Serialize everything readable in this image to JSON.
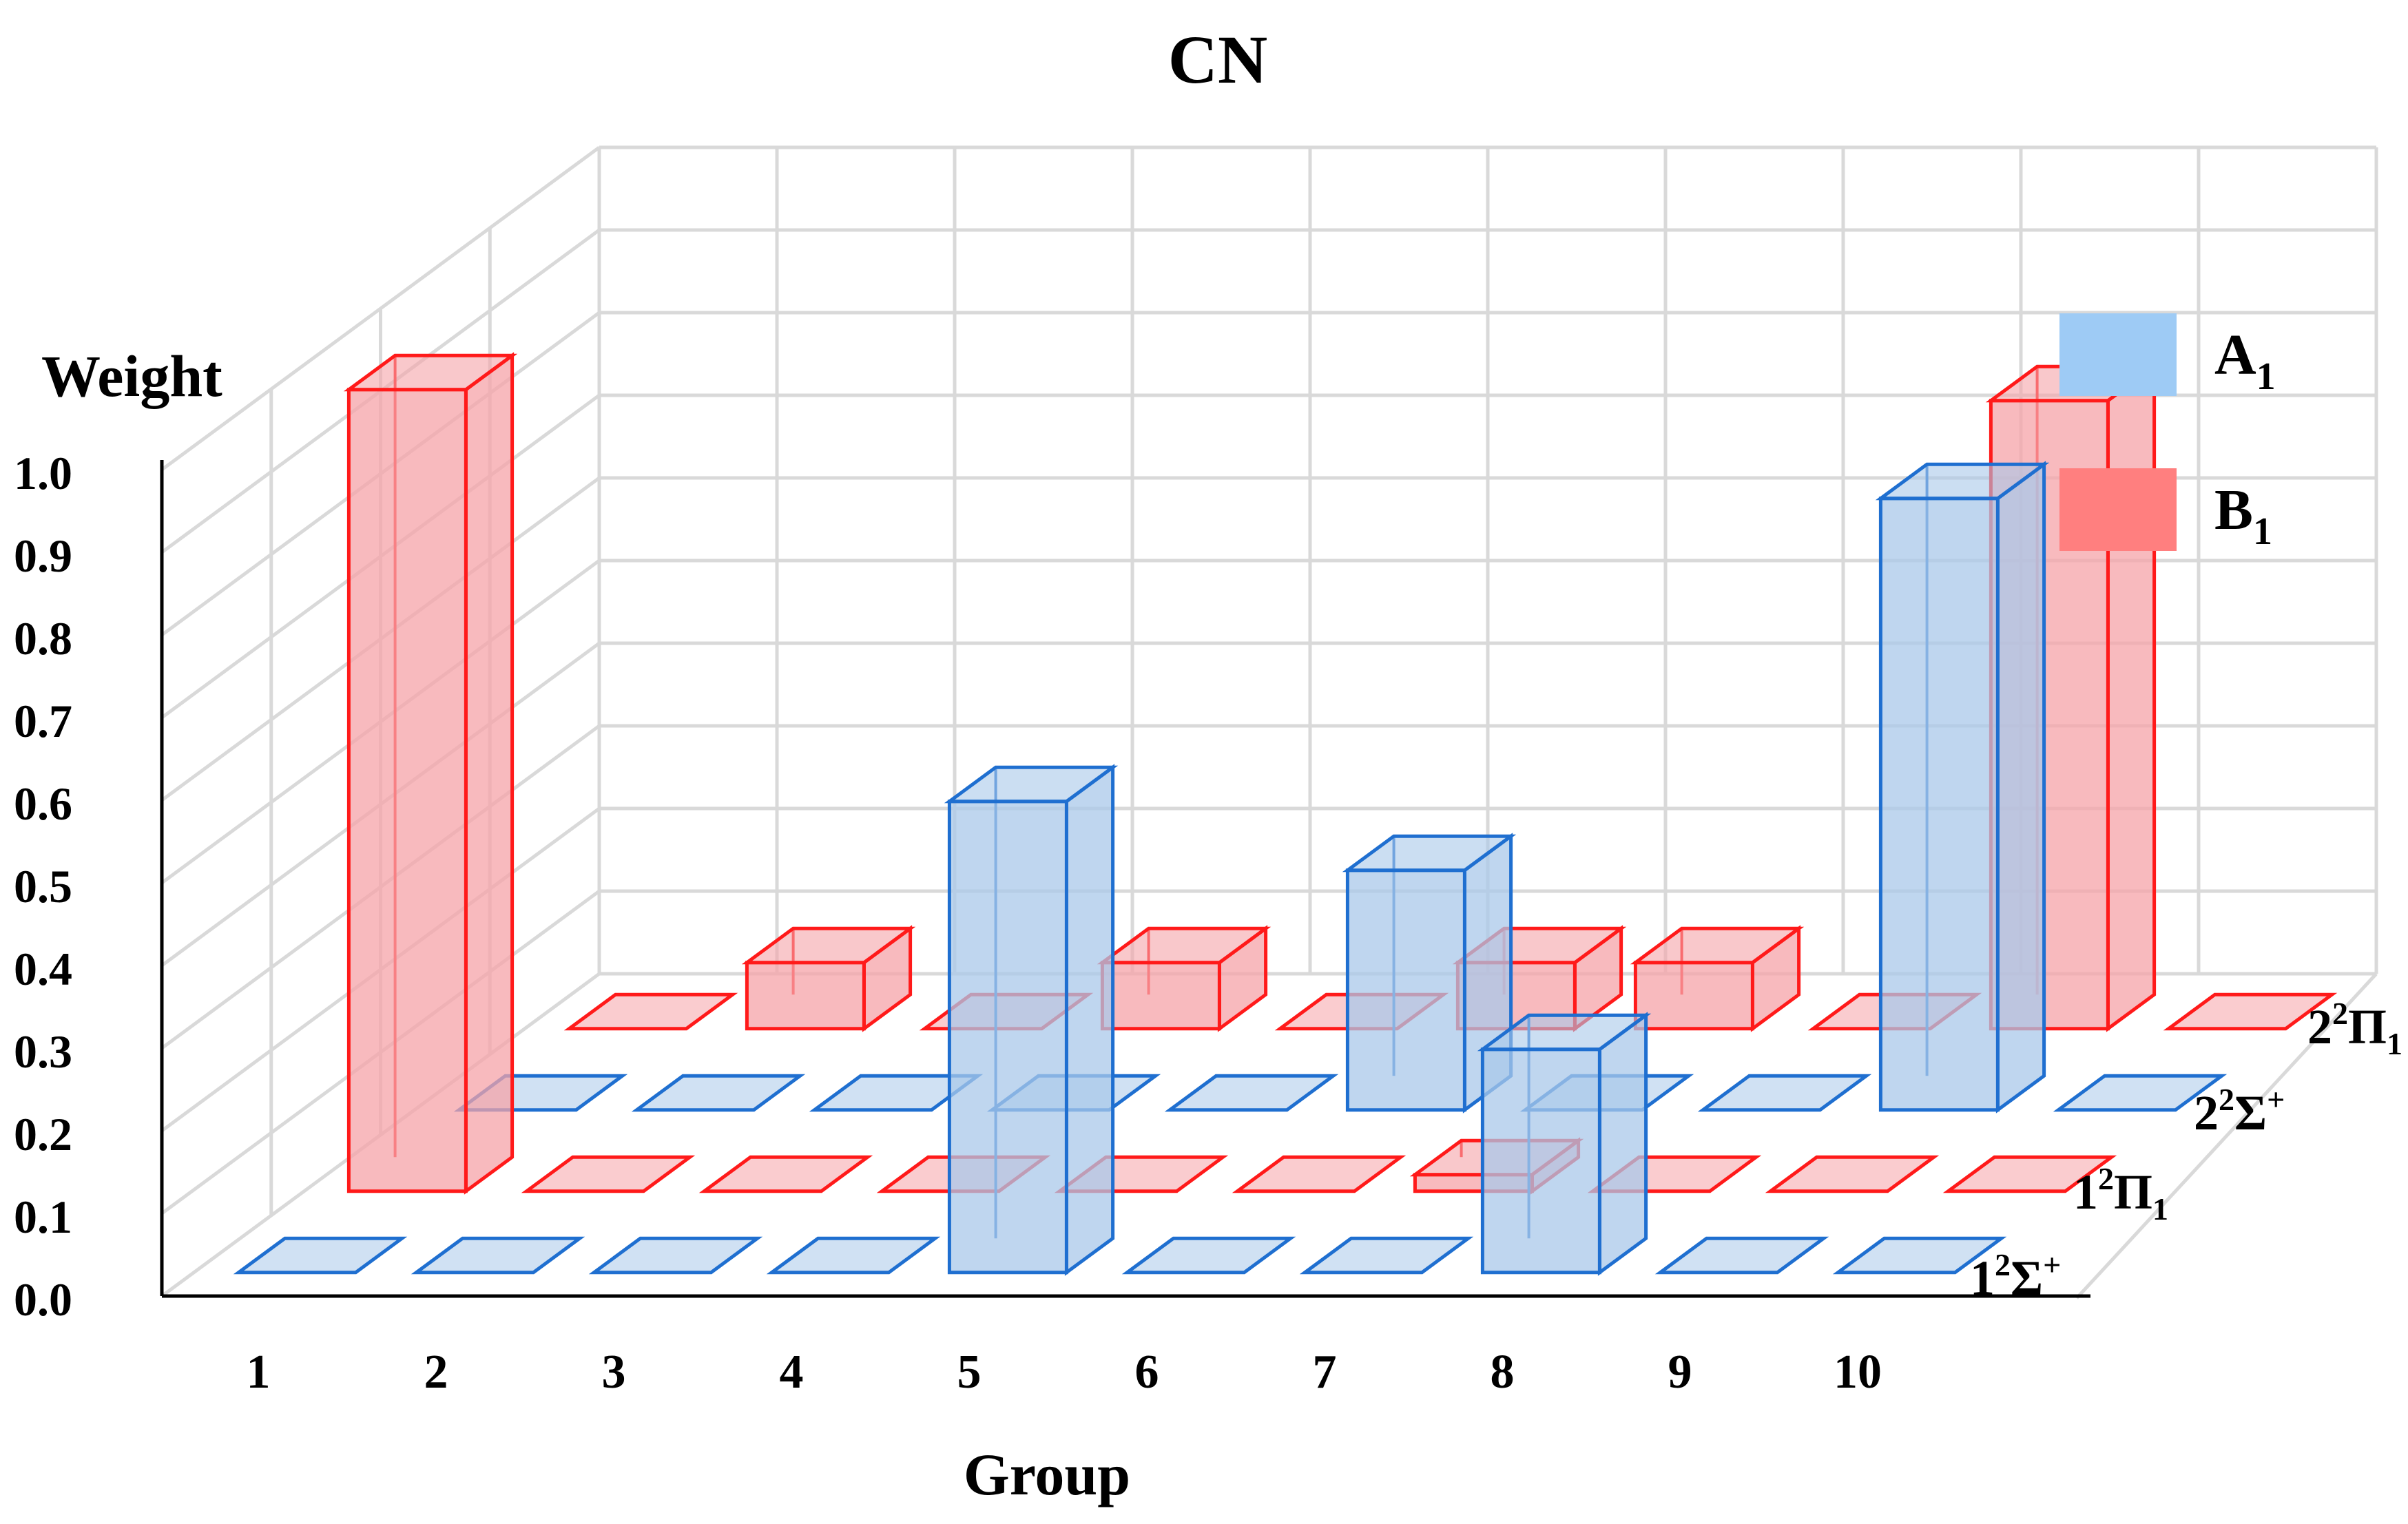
{
  "chart_data": {
    "type": "bar3d",
    "title": "CN",
    "xlabel": "Group",
    "ylabel": "Weight",
    "categories": [
      "1",
      "2",
      "3",
      "4",
      "5",
      "6",
      "7",
      "8",
      "9",
      "10"
    ],
    "yticks": [
      "0.0",
      "0.1",
      "0.2",
      "0.3",
      "0.4",
      "0.5",
      "0.6",
      "0.7",
      "0.8",
      "0.9",
      "1.0"
    ],
    "ylim": [
      0,
      1.0
    ],
    "legend": [
      {
        "name": "A",
        "sub": "1",
        "color": "#9ecbf5"
      },
      {
        "name": "B",
        "sub": "1",
        "color": "#ff7f7f"
      }
    ],
    "rows": [
      {
        "name": "1",
        "sup": "2",
        "sym": "Σ",
        "sub": "",
        "supr": "+",
        "series": "A1"
      },
      {
        "name": "1",
        "sup": "2",
        "sym": "Π",
        "sub": "1",
        "supr": "",
        "series": "B1"
      },
      {
        "name": "2",
        "sup": "2",
        "sym": "Σ",
        "sub": "",
        "supr": "+",
        "series": "A1"
      },
      {
        "name": "2",
        "sup": "2",
        "sym": "Π",
        "sub": "1",
        "supr": "",
        "series": "B1"
      }
    ],
    "values": [
      [
        0,
        0,
        0,
        0,
        0.57,
        0,
        0,
        0.27,
        0,
        0
      ],
      [
        0.97,
        0,
        0,
        0,
        0,
        0,
        0.02,
        0,
        0,
        0
      ],
      [
        0,
        0,
        0,
        0,
        0,
        0.29,
        0,
        0,
        0.74,
        0
      ],
      [
        0,
        0.08,
        0,
        0.08,
        0,
        0.08,
        0.08,
        0,
        0.76,
        0
      ]
    ],
    "colors": {
      "A1_fill": "#a9c8ea",
      "A1_edge": "#1f6fd0",
      "B1_fill": "#f5a3a8",
      "B1_edge": "#ff1a1a",
      "grid": "#d9d9d9"
    }
  }
}
